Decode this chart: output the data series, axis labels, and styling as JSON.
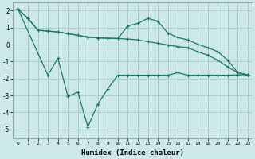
{
  "background_color": "#cce8e8",
  "grid_color": "#aacccc",
  "line_color": "#1a7a6a",
  "xlabel": "Humidex (Indice chaleur)",
  "xlim": [
    -0.5,
    23.5
  ],
  "ylim": [
    -5.5,
    2.5
  ],
  "yticks": [
    -5,
    -4,
    -3,
    -2,
    -1,
    0,
    1,
    2
  ],
  "xticks": [
    0,
    1,
    2,
    3,
    4,
    5,
    6,
    7,
    8,
    9,
    10,
    11,
    12,
    13,
    14,
    15,
    16,
    17,
    18,
    19,
    20,
    21,
    22,
    23
  ],
  "line1_x": [
    0,
    1,
    2,
    3,
    4,
    5,
    6,
    7,
    8,
    9,
    10,
    11,
    12,
    13,
    14,
    15,
    16,
    17,
    18,
    19,
    20,
    21,
    22,
    23
  ],
  "line1_y": [
    2.1,
    1.55,
    0.85,
    0.8,
    0.75,
    0.65,
    0.55,
    0.45,
    0.4,
    0.38,
    0.36,
    1.1,
    1.25,
    1.55,
    1.38,
    0.68,
    0.42,
    0.28,
    0.02,
    -0.18,
    -0.42,
    -0.92,
    -1.65,
    -1.78
  ],
  "line2_x": [
    0,
    1,
    2,
    3,
    4,
    5,
    6,
    7,
    8,
    9,
    10,
    11,
    12,
    13,
    14,
    15,
    16,
    17,
    18,
    19,
    20,
    21,
    22,
    23
  ],
  "line2_y": [
    2.1,
    1.55,
    0.85,
    0.8,
    0.75,
    0.65,
    0.55,
    0.45,
    0.4,
    0.38,
    0.36,
    0.33,
    0.28,
    0.18,
    0.08,
    -0.02,
    -0.12,
    -0.18,
    -0.42,
    -0.62,
    -0.92,
    -1.32,
    -1.65,
    -1.78
  ],
  "line3_x": [
    0,
    3,
    4,
    5,
    6,
    7,
    8,
    9,
    10,
    11,
    12,
    13,
    14,
    15,
    16,
    17,
    18,
    19,
    20,
    21,
    22,
    23
  ],
  "line3_y": [
    2.1,
    -1.8,
    -0.8,
    -3.05,
    -2.8,
    -4.85,
    -3.5,
    -2.6,
    -1.8,
    -1.8,
    -1.8,
    -1.8,
    -1.8,
    -1.8,
    -1.65,
    -1.8,
    -1.8,
    -1.8,
    -1.8,
    -1.8,
    -1.78,
    -1.78
  ]
}
